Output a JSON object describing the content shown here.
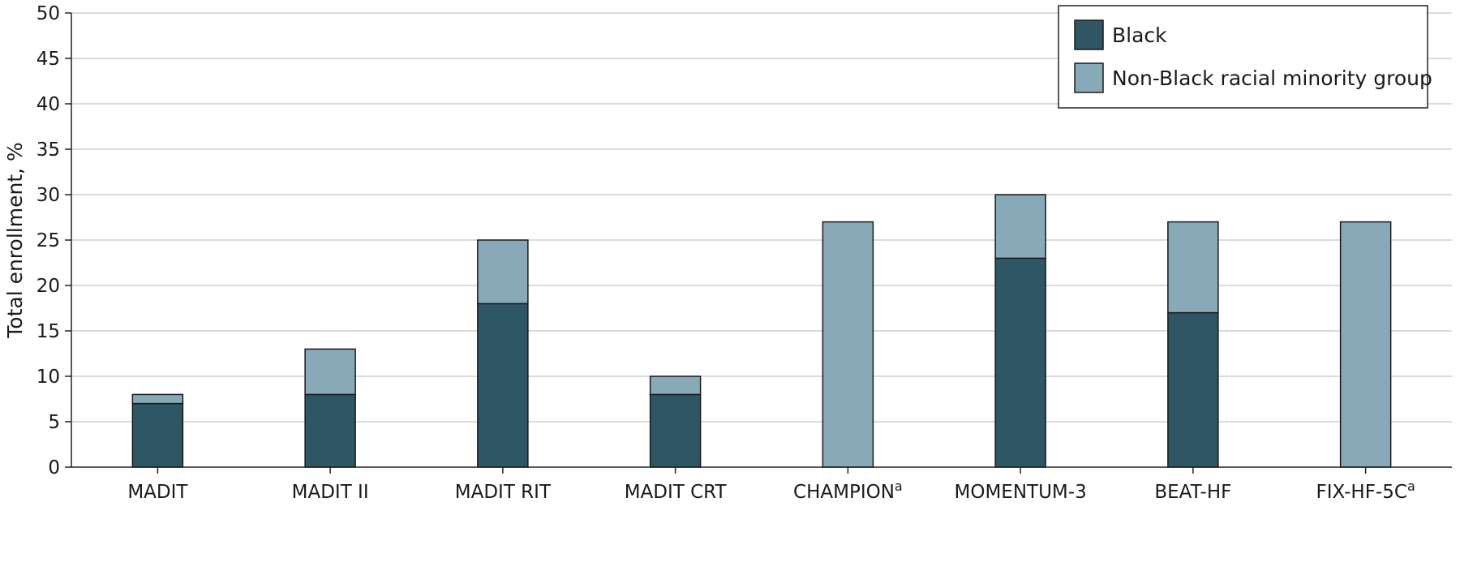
{
  "chart_data": {
    "type": "bar",
    "stacked": true,
    "categories": [
      "MADIT",
      "MADIT II",
      "MADIT RIT",
      "MADIT CRT",
      "CHAMPIONa",
      "MOMENTUM-3",
      "BEAT-HF",
      "FIX-HF-5Ca"
    ],
    "category_labels": [
      {
        "main": "MADIT",
        "sup": ""
      },
      {
        "main": "MADIT II",
        "sup": ""
      },
      {
        "main": "MADIT RIT",
        "sup": ""
      },
      {
        "main": "MADIT CRT",
        "sup": ""
      },
      {
        "main": "CHAMPION",
        "sup": "a"
      },
      {
        "main": "MOMENTUM-3",
        "sup": ""
      },
      {
        "main": "BEAT-HF",
        "sup": ""
      },
      {
        "main": "FIX-HF-5C",
        "sup": "a"
      }
    ],
    "series": [
      {
        "name": "Black",
        "color": "#2e5665",
        "values": [
          7,
          8,
          18,
          8,
          0,
          23,
          17,
          0
        ]
      },
      {
        "name": "Non-Black racial minority group",
        "color": "#87a9b8",
        "values": [
          1,
          5,
          7,
          2,
          27,
          7,
          10,
          27
        ]
      }
    ],
    "title": "",
    "xlabel": "",
    "ylabel": "Total enrollment, %",
    "ylim": [
      0,
      50
    ],
    "yticks": [
      0,
      5,
      10,
      15,
      20,
      25,
      30,
      35,
      40,
      45,
      50
    ],
    "grid": true,
    "legend_position": "top-right"
  }
}
